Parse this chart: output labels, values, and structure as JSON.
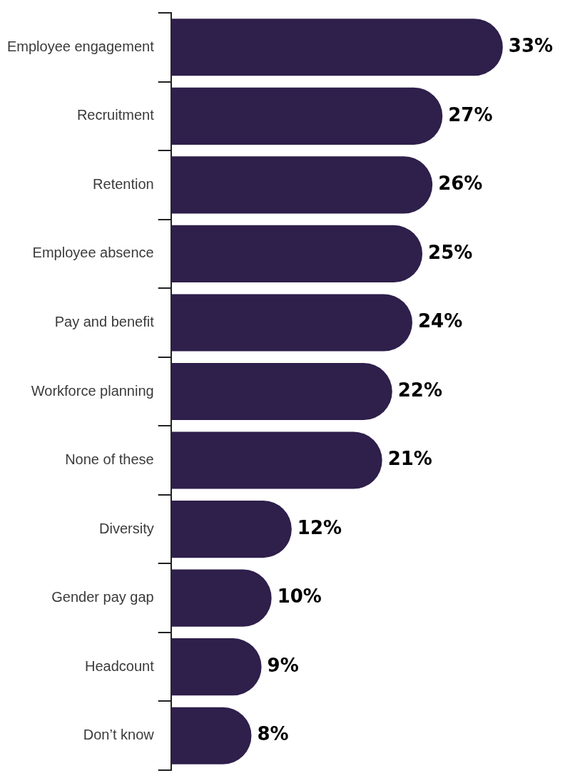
{
  "chart_data": {
    "type": "bar",
    "orientation": "horizontal",
    "categories": [
      "Employee engagement",
      "Recruitment",
      "Retention",
      "Employee absence",
      "Pay and benefit",
      "Workforce planning",
      "None of these",
      "Diversity",
      "Gender pay gap",
      "Headcount",
      "Don’t know"
    ],
    "values": [
      33,
      27,
      26,
      25,
      24,
      22,
      21,
      12,
      10,
      9,
      8
    ],
    "value_labels": [
      "33%",
      "27%",
      "26%",
      "25%",
      "24%",
      "22%",
      "21%",
      "12%",
      "10%",
      "9%",
      "8%"
    ],
    "color": "#2e1f4b",
    "tick_labels": "y",
    "grid": false
  }
}
